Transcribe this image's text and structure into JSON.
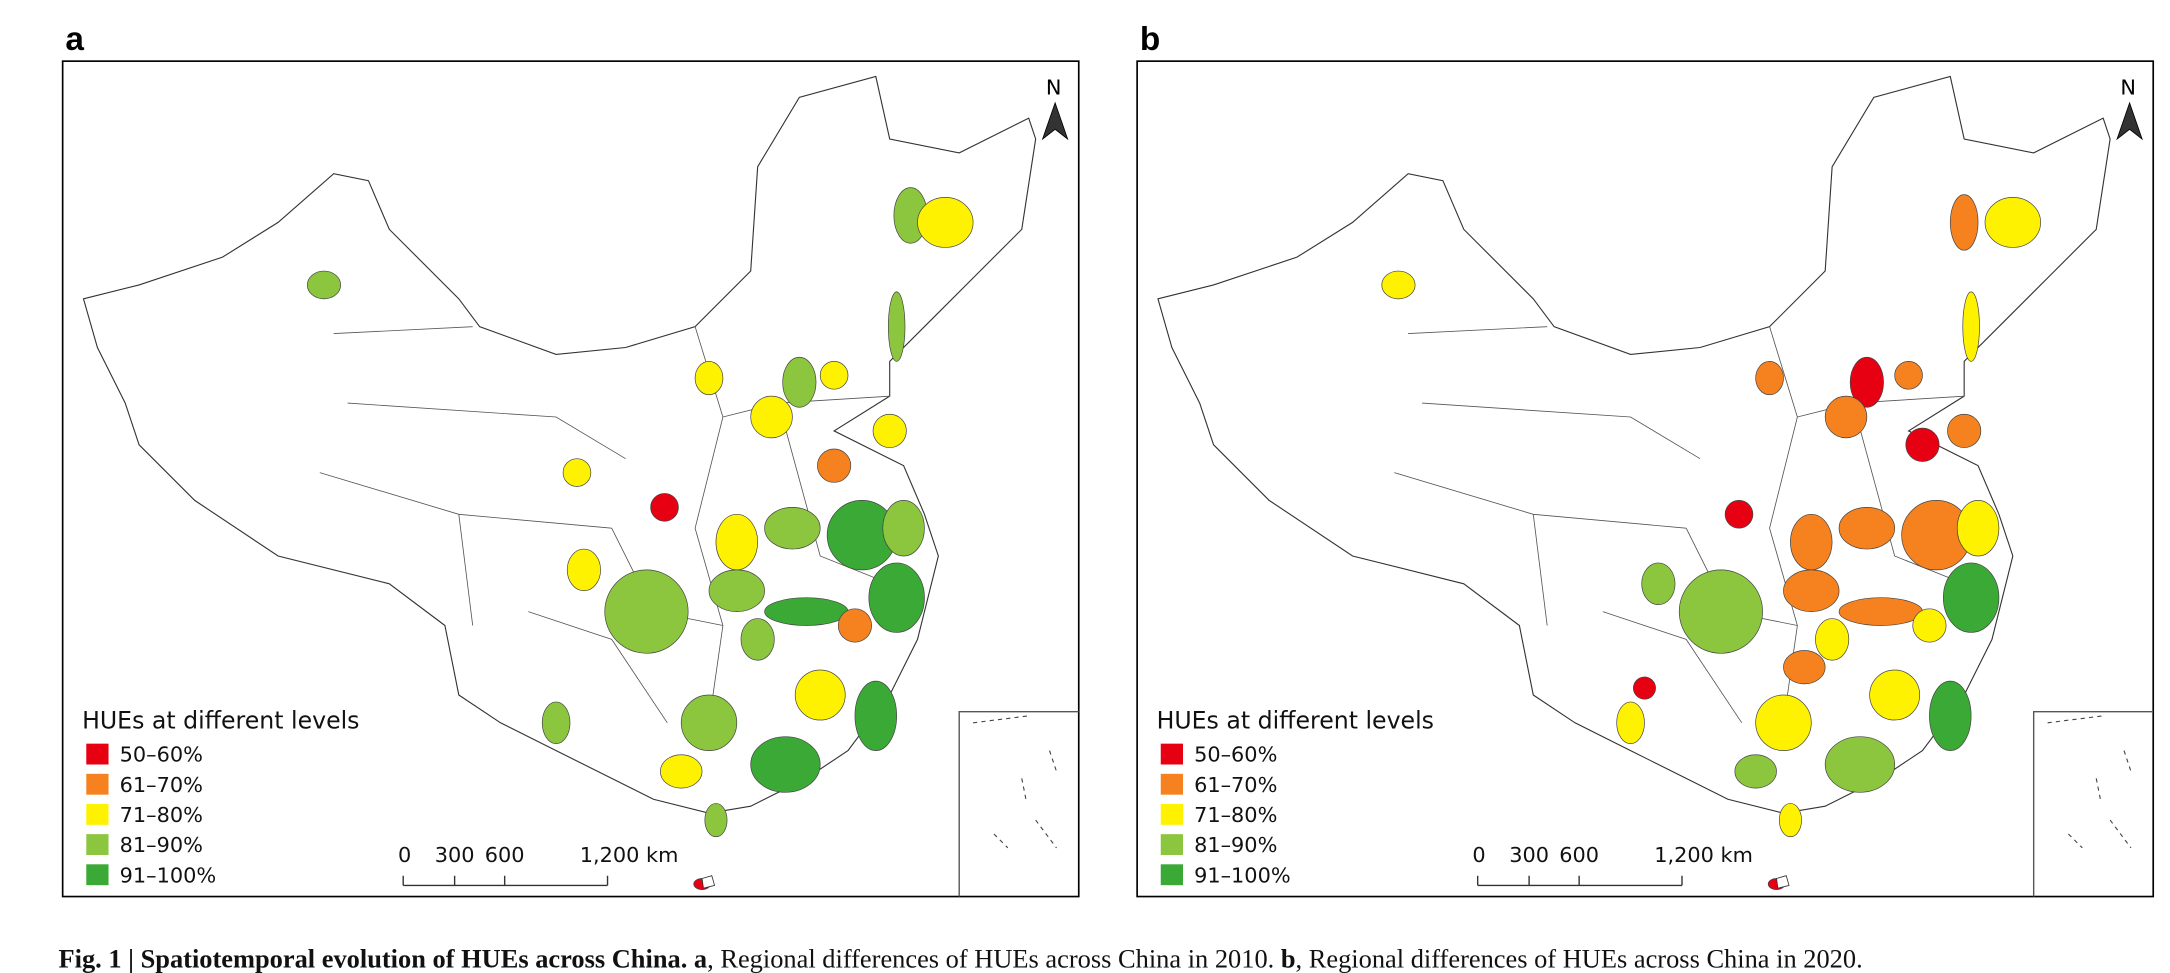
{
  "panels": [
    {
      "label": "a",
      "north": "N",
      "legend_title": "HUEs at different levels",
      "scale_labels": [
        "0",
        "300",
        "600",
        "1,200 km"
      ]
    },
    {
      "label": "b",
      "north": "N",
      "legend_title": "HUEs at different levels",
      "scale_labels": [
        "0",
        "300",
        "600",
        "1,200 km"
      ]
    }
  ],
  "legend": [
    {
      "label": "50–60%",
      "color": "#e60012"
    },
    {
      "label": "61–70%",
      "color": "#f5821f"
    },
    {
      "label": "71–80%",
      "color": "#fff200"
    },
    {
      "label": "81–90%",
      "color": "#8cc63f"
    },
    {
      "label": "91–100%",
      "color": "#3aa935"
    }
  ],
  "caption": {
    "figure": "Fig. 1 | Spatiotemporal evolution of HUEs across China.",
    "a_label": "a",
    "a_text": ", Regional differences of HUEs across China in 2010.",
    "b_label": "b",
    "b_text": ", Regional differences of HUEs across China in 2020."
  }
}
